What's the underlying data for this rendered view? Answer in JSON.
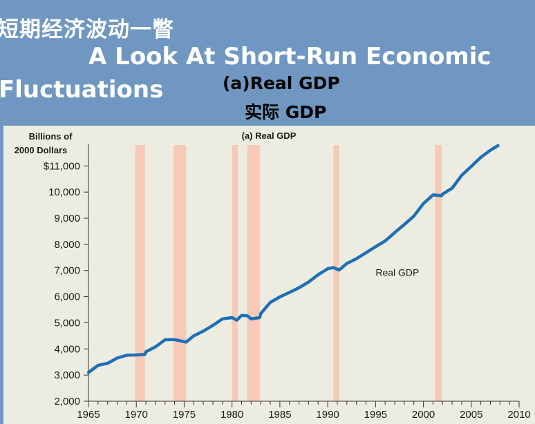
{
  "slide": {
    "title_zh": "短期经济波动一瞥",
    "title_en_line1": "A Look At Short-Run Economic",
    "title_en_line2": "Fluctuations",
    "subtitle_en": "(a)Real GDP",
    "subtitle_zh": "实际 GDP"
  },
  "chart_data": {
    "type": "line",
    "title": "(a) Real GDP",
    "ylabel_line1": "Billions of",
    "ylabel_line2": "2000 Dollars",
    "xlim": [
      1965,
      2010
    ],
    "ylim": [
      2000,
      11800
    ],
    "x_ticks": [
      "1965",
      "1970",
      "1975",
      "1980",
      "1985",
      "1990",
      "1995",
      "2000",
      "2005",
      "2010"
    ],
    "x_tick_values": [
      1965,
      1970,
      1975,
      1980,
      1985,
      1990,
      1995,
      2000,
      2005,
      2010
    ],
    "y_ticks": [
      "2,000",
      "3,000",
      "4,000",
      "5,000",
      "6,000",
      "7,000",
      "8,000",
      "9,000",
      "10,000",
      "$11,000"
    ],
    "y_tick_values": [
      2000,
      3000,
      4000,
      5000,
      6000,
      7000,
      8000,
      9000,
      10000,
      11000
    ],
    "recessions": [
      [
        1969.9,
        1970.9
      ],
      [
        1973.9,
        1975.2
      ],
      [
        1980.0,
        1980.6
      ],
      [
        1981.6,
        1982.9
      ],
      [
        1990.6,
        1991.2
      ],
      [
        2001.2,
        2001.9
      ]
    ],
    "series": [
      {
        "name": "Real GDP",
        "color": "#1f6fb5",
        "x": [
          1965,
          1966,
          1967,
          1968,
          1969,
          1970,
          1970.9,
          1971,
          1972,
          1973,
          1973.9,
          1974.5,
          1975.2,
          1976,
          1977,
          1978,
          1979,
          1980,
          1980.5,
          1981,
          1981.6,
          1982,
          1982.9,
          1983,
          1984,
          1985,
          1986,
          1987,
          1988,
          1989,
          1990,
          1990.6,
          1991.2,
          1992,
          1993,
          1994,
          1995,
          1996,
          1997,
          1998,
          1999,
          2000,
          2001,
          2001.9,
          2002,
          2003,
          2004,
          2005,
          2006,
          2007,
          2007.8
        ],
        "values": [
          3100,
          3370,
          3450,
          3650,
          3760,
          3770,
          3790,
          3890,
          4080,
          4350,
          4360,
          4320,
          4260,
          4500,
          4680,
          4900,
          5150,
          5200,
          5100,
          5280,
          5270,
          5150,
          5200,
          5350,
          5780,
          5990,
          6160,
          6340,
          6560,
          6840,
          7070,
          7110,
          7020,
          7270,
          7450,
          7680,
          7910,
          8130,
          8450,
          8760,
          9080,
          9560,
          9890,
          9860,
          9920,
          10150,
          10640,
          10980,
          11330,
          11600,
          11780
        ]
      }
    ],
    "series_label": "Real GDP",
    "series_label_pos": [
      1995,
      6800
    ],
    "grid": false
  }
}
